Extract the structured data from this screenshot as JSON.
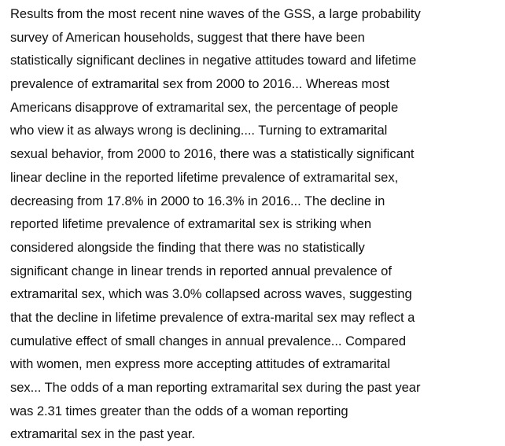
{
  "paragraph": {
    "lines": [
      "Results from the most recent nine waves of the GSS, a large probability",
      "survey of American households, suggest that there have been",
      "statistically significant declines in negative attitudes toward and lifetime",
      "prevalence of extramarital sex from 2000 to 2016... Whereas most",
      "Americans disapprove of extramarital sex, the percentage of people",
      "who view it as always wrong is declining.... Turning to extramarital",
      "sexual behavior, from 2000 to 2016, there was a statistically significant",
      "linear decline in the reported lifetime prevalence of extramarital sex,",
      "decreasing from 17.8% in 2000 to 16.3% in 2016... The decline in",
      "reported lifetime prevalence of extramarital sex is striking when",
      "considered alongside the finding that there was no statistically",
      "significant change in linear trends in reported annual prevalence of",
      "extramarital sex, which was 3.0% collapsed across waves, suggesting",
      "that the decline in lifetime prevalence of extra-marital sex may reflect a",
      "cumulative effect of small changes in annual prevalence... Compared",
      "with women, men express more accepting attitudes of extramarital",
      "sex... The odds of a man reporting extramarital sex during the past year",
      "was 2.31 times greater than the odds of a woman reporting",
      "extramarital sex in the past year."
    ]
  }
}
